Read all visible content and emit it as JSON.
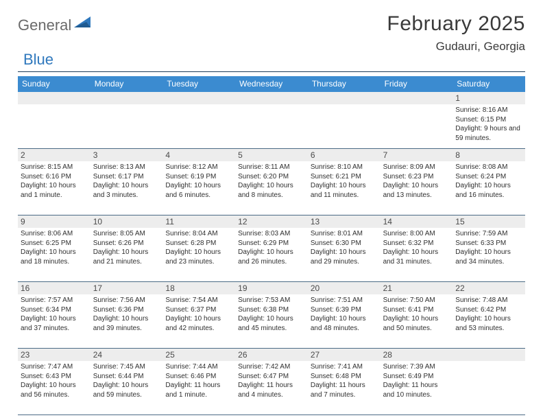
{
  "logo": {
    "part1": "General",
    "part2": "Blue"
  },
  "title": "February 2025",
  "location": "Gudauri, Georgia",
  "colors": {
    "header_bg": "#3b8bd0",
    "header_text": "#ffffff",
    "rule": "#1b3a57",
    "daynum_bg": "#ededed",
    "text": "#2f2f2f",
    "logo_gray": "#6a6a6a",
    "logo_blue": "#2f78bd"
  },
  "daysOfWeek": [
    "Sunday",
    "Monday",
    "Tuesday",
    "Wednesday",
    "Thursday",
    "Friday",
    "Saturday"
  ],
  "weeks": [
    [
      {
        "n": "",
        "lines": []
      },
      {
        "n": "",
        "lines": []
      },
      {
        "n": "",
        "lines": []
      },
      {
        "n": "",
        "lines": []
      },
      {
        "n": "",
        "lines": []
      },
      {
        "n": "",
        "lines": []
      },
      {
        "n": "1",
        "lines": [
          "Sunrise: 8:16 AM",
          "Sunset: 6:15 PM",
          "Daylight: 9 hours and 59 minutes."
        ]
      }
    ],
    [
      {
        "n": "2",
        "lines": [
          "Sunrise: 8:15 AM",
          "Sunset: 6:16 PM",
          "Daylight: 10 hours and 1 minute."
        ]
      },
      {
        "n": "3",
        "lines": [
          "Sunrise: 8:13 AM",
          "Sunset: 6:17 PM",
          "Daylight: 10 hours and 3 minutes."
        ]
      },
      {
        "n": "4",
        "lines": [
          "Sunrise: 8:12 AM",
          "Sunset: 6:19 PM",
          "Daylight: 10 hours and 6 minutes."
        ]
      },
      {
        "n": "5",
        "lines": [
          "Sunrise: 8:11 AM",
          "Sunset: 6:20 PM",
          "Daylight: 10 hours and 8 minutes."
        ]
      },
      {
        "n": "6",
        "lines": [
          "Sunrise: 8:10 AM",
          "Sunset: 6:21 PM",
          "Daylight: 10 hours and 11 minutes."
        ]
      },
      {
        "n": "7",
        "lines": [
          "Sunrise: 8:09 AM",
          "Sunset: 6:23 PM",
          "Daylight: 10 hours and 13 minutes."
        ]
      },
      {
        "n": "8",
        "lines": [
          "Sunrise: 8:08 AM",
          "Sunset: 6:24 PM",
          "Daylight: 10 hours and 16 minutes."
        ]
      }
    ],
    [
      {
        "n": "9",
        "lines": [
          "Sunrise: 8:06 AM",
          "Sunset: 6:25 PM",
          "Daylight: 10 hours and 18 minutes."
        ]
      },
      {
        "n": "10",
        "lines": [
          "Sunrise: 8:05 AM",
          "Sunset: 6:26 PM",
          "Daylight: 10 hours and 21 minutes."
        ]
      },
      {
        "n": "11",
        "lines": [
          "Sunrise: 8:04 AM",
          "Sunset: 6:28 PM",
          "Daylight: 10 hours and 23 minutes."
        ]
      },
      {
        "n": "12",
        "lines": [
          "Sunrise: 8:03 AM",
          "Sunset: 6:29 PM",
          "Daylight: 10 hours and 26 minutes."
        ]
      },
      {
        "n": "13",
        "lines": [
          "Sunrise: 8:01 AM",
          "Sunset: 6:30 PM",
          "Daylight: 10 hours and 29 minutes."
        ]
      },
      {
        "n": "14",
        "lines": [
          "Sunrise: 8:00 AM",
          "Sunset: 6:32 PM",
          "Daylight: 10 hours and 31 minutes."
        ]
      },
      {
        "n": "15",
        "lines": [
          "Sunrise: 7:59 AM",
          "Sunset: 6:33 PM",
          "Daylight: 10 hours and 34 minutes."
        ]
      }
    ],
    [
      {
        "n": "16",
        "lines": [
          "Sunrise: 7:57 AM",
          "Sunset: 6:34 PM",
          "Daylight: 10 hours and 37 minutes."
        ]
      },
      {
        "n": "17",
        "lines": [
          "Sunrise: 7:56 AM",
          "Sunset: 6:36 PM",
          "Daylight: 10 hours and 39 minutes."
        ]
      },
      {
        "n": "18",
        "lines": [
          "Sunrise: 7:54 AM",
          "Sunset: 6:37 PM",
          "Daylight: 10 hours and 42 minutes."
        ]
      },
      {
        "n": "19",
        "lines": [
          "Sunrise: 7:53 AM",
          "Sunset: 6:38 PM",
          "Daylight: 10 hours and 45 minutes."
        ]
      },
      {
        "n": "20",
        "lines": [
          "Sunrise: 7:51 AM",
          "Sunset: 6:39 PM",
          "Daylight: 10 hours and 48 minutes."
        ]
      },
      {
        "n": "21",
        "lines": [
          "Sunrise: 7:50 AM",
          "Sunset: 6:41 PM",
          "Daylight: 10 hours and 50 minutes."
        ]
      },
      {
        "n": "22",
        "lines": [
          "Sunrise: 7:48 AM",
          "Sunset: 6:42 PM",
          "Daylight: 10 hours and 53 minutes."
        ]
      }
    ],
    [
      {
        "n": "23",
        "lines": [
          "Sunrise: 7:47 AM",
          "Sunset: 6:43 PM",
          "Daylight: 10 hours and 56 minutes."
        ]
      },
      {
        "n": "24",
        "lines": [
          "Sunrise: 7:45 AM",
          "Sunset: 6:44 PM",
          "Daylight: 10 hours and 59 minutes."
        ]
      },
      {
        "n": "25",
        "lines": [
          "Sunrise: 7:44 AM",
          "Sunset: 6:46 PM",
          "Daylight: 11 hours and 1 minute."
        ]
      },
      {
        "n": "26",
        "lines": [
          "Sunrise: 7:42 AM",
          "Sunset: 6:47 PM",
          "Daylight: 11 hours and 4 minutes."
        ]
      },
      {
        "n": "27",
        "lines": [
          "Sunrise: 7:41 AM",
          "Sunset: 6:48 PM",
          "Daylight: 11 hours and 7 minutes."
        ]
      },
      {
        "n": "28",
        "lines": [
          "Sunrise: 7:39 AM",
          "Sunset: 6:49 PM",
          "Daylight: 11 hours and 10 minutes."
        ]
      },
      {
        "n": "",
        "lines": []
      }
    ]
  ]
}
